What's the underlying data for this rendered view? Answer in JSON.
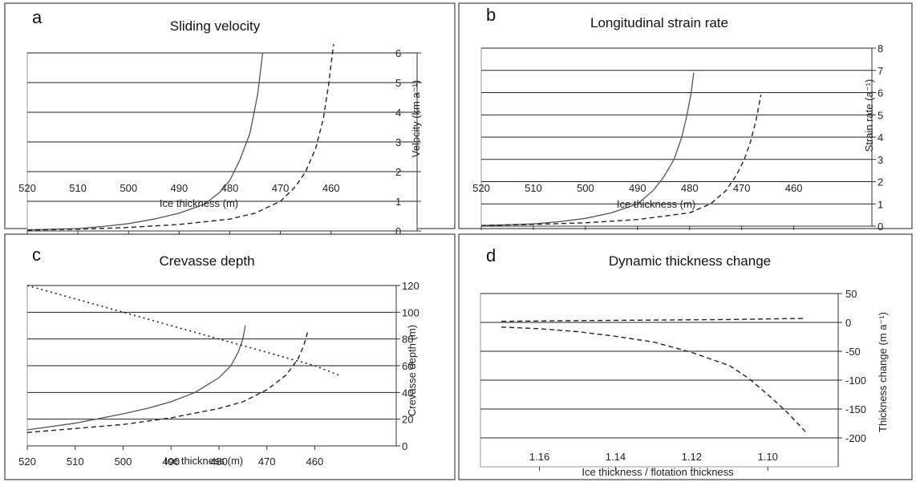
{
  "chart_data": [
    {
      "type": "line",
      "letter": "a",
      "title": "Sliding velocity",
      "xlabel": "Ice thickness (m)",
      "ylabel": "Velocity (km a⁻¹)",
      "xlim": [
        520,
        443
      ],
      "ylim": [
        0,
        6
      ],
      "xticks": [
        520,
        510,
        500,
        490,
        480,
        470,
        460
      ],
      "yticks": [
        0,
        1,
        2,
        3,
        4,
        5,
        6
      ],
      "grid": true,
      "series": [
        {
          "style": "solid",
          "x": [
            520,
            510,
            505,
            500,
            495,
            490,
            485,
            482,
            480,
            478,
            476,
            474.5,
            473.5
          ],
          "y": [
            0.04,
            0.08,
            0.15,
            0.25,
            0.4,
            0.6,
            0.9,
            1.3,
            1.7,
            2.4,
            3.3,
            4.6,
            6.0
          ]
        },
        {
          "style": "dashed",
          "x": [
            520,
            510,
            500,
            490,
            480,
            475,
            470,
            467,
            465,
            463,
            461.5,
            460.5,
            459.5
          ],
          "y": [
            0.03,
            0.06,
            0.12,
            0.22,
            0.4,
            0.6,
            1.0,
            1.5,
            2.0,
            2.8,
            3.8,
            4.9,
            6.3
          ]
        }
      ]
    },
    {
      "type": "line",
      "letter": "b",
      "title": "Longitudinal strain rate",
      "xlabel": "Ice thickness (m)",
      "ylabel": "Strain rate (a⁻¹)",
      "xlim": [
        520,
        445
      ],
      "ylim": [
        0,
        8
      ],
      "xticks": [
        520,
        510,
        500,
        490,
        480,
        470,
        460
      ],
      "yticks": [
        0,
        1,
        2,
        3,
        4,
        5,
        6,
        7,
        8
      ],
      "grid": true,
      "series": [
        {
          "style": "solid",
          "x": [
            520,
            510,
            505,
            500,
            495,
            490,
            487,
            485,
            483,
            481.5,
            480.5,
            479.7,
            479.2
          ],
          "y": [
            0.03,
            0.1,
            0.2,
            0.35,
            0.6,
            1.0,
            1.6,
            2.2,
            3.0,
            4.0,
            5.0,
            6.0,
            6.9
          ]
        },
        {
          "style": "dashed",
          "x": [
            520,
            510,
            500,
            490,
            480,
            476,
            473,
            471,
            469.5,
            468.3,
            467.2,
            466.3
          ],
          "y": [
            0.03,
            0.08,
            0.15,
            0.3,
            0.6,
            1.0,
            1.6,
            2.3,
            3.0,
            3.8,
            4.8,
            5.9
          ]
        }
      ]
    },
    {
      "type": "line",
      "letter": "c",
      "title": "Crevasse depth",
      "xlabel": "Ice thickness (m)",
      "ylabel": "Crevasse depth (m)",
      "xlim": [
        520,
        443
      ],
      "ylim": [
        0,
        120
      ],
      "xticks": [
        520,
        510,
        500,
        490,
        480,
        470,
        460
      ],
      "yticks": [
        0,
        20,
        40,
        60,
        80,
        100,
        120
      ],
      "grid": true,
      "series": [
        {
          "style": "solid",
          "x": [
            520,
            510,
            500,
            495,
            490,
            485,
            480,
            477.5,
            476,
            475,
            474.5
          ],
          "y": [
            12,
            17,
            24,
            28,
            33,
            40,
            51,
            60,
            70,
            80,
            90
          ]
        },
        {
          "style": "dashed",
          "x": [
            520,
            510,
            500,
            490,
            480,
            475,
            470,
            466,
            463.5,
            462.3,
            461.5
          ],
          "y": [
            10,
            13,
            16,
            21,
            28,
            33,
            42,
            53,
            65,
            75,
            85
          ]
        },
        {
          "style": "dotted",
          "x": [
            520,
            500,
            480,
            470,
            460,
            455
          ],
          "y": [
            120,
            100,
            80,
            70,
            60,
            53
          ]
        }
      ]
    },
    {
      "type": "line",
      "letter": "d",
      "title": "Dynamic thickness change",
      "xlabel": "Ice thickness / flotation thickness",
      "ylabel": "Thickness change (m a⁻¹)",
      "xlim": [
        1.1755,
        1.0815
      ],
      "ylim": [
        -250,
        50
      ],
      "xticks": [
        "1.16",
        "1.14",
        "1.12",
        "1.10"
      ],
      "yticks": [
        "50",
        "0",
        "-50",
        "-100",
        "-150",
        "-200"
      ],
      "grid": true,
      "series": [
        {
          "style": "dashed",
          "x": [
            1.17,
            1.15,
            1.13,
            1.11,
            1.09
          ],
          "y": [
            2,
            3,
            4,
            5,
            7
          ]
        },
        {
          "style": "dashed",
          "x": [
            1.17,
            1.16,
            1.15,
            1.14,
            1.13,
            1.12,
            1.11,
            1.105,
            1.1,
            1.095,
            1.09
          ],
          "y": [
            -8,
            -11,
            -16,
            -24,
            -34,
            -52,
            -75,
            -97,
            -125,
            -155,
            -190
          ]
        }
      ]
    }
  ]
}
